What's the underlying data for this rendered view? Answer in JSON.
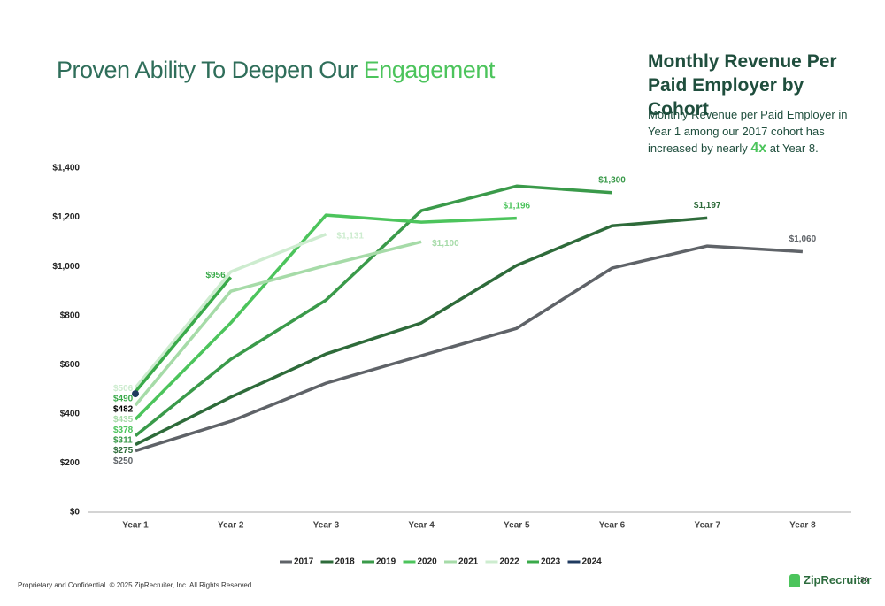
{
  "header": {
    "title": "Proven Ability To Deepen Our ",
    "title_highlight": "Engagement"
  },
  "side": {
    "title": "Monthly Revenue Per Paid Employer by Cohort",
    "description": "Monthly Revenue per Paid Employer in Year 1 among our 2017 cohort has increased by nearly ",
    "description_highlight": "4x",
    "description_end": " at Year 8."
  },
  "footer": {
    "text": "Proprietary and Confidential. © 2025 ZipRecruiter, Inc. All Rights Reserved.",
    "logo": "ZipRecruiter",
    "page": "26"
  },
  "chart_data": {
    "type": "line",
    "categories": [
      "Year 1",
      "Year 2",
      "Year 3",
      "Year 4",
      "Year 5",
      "Year 6",
      "Year 7",
      "Year 8"
    ],
    "ylim": [
      0,
      1400
    ],
    "yticks": [
      {
        "value": 0,
        "label": "$0"
      },
      {
        "value": 200,
        "label": "$200"
      },
      {
        "value": 400,
        "label": "$400"
      },
      {
        "value": 600,
        "label": "$600"
      },
      {
        "value": 800,
        "label": "$800"
      },
      {
        "value": 1000,
        "label": "$1,000"
      },
      {
        "value": 1200,
        "label": "$1,200"
      },
      {
        "value": 1400,
        "label": "$1,400"
      }
    ],
    "grid": false,
    "legend": "bottom",
    "series": [
      {
        "name": "2017",
        "color": "#5f6368",
        "values": [
          250,
          370,
          525,
          637,
          748,
          993,
          1083,
          1060
        ],
        "value_labels": [
          "$250",
          null,
          null,
          null,
          null,
          null,
          null,
          "$1,060"
        ]
      },
      {
        "name": "2018",
        "color": "#2e6b3a",
        "values": [
          275,
          468,
          644,
          770,
          1004,
          1165,
          1197,
          null
        ],
        "value_labels": [
          "$275",
          null,
          null,
          null,
          null,
          null,
          "$1,197",
          null
        ]
      },
      {
        "name": "2019",
        "color": "#3a9a4a",
        "values": [
          311,
          622,
          863,
          1227,
          1327,
          1300,
          null,
          null
        ],
        "value_labels": [
          "$311",
          null,
          null,
          null,
          null,
          "$1,300",
          null,
          null
        ]
      },
      {
        "name": "2020",
        "color": "#4cc45c",
        "values": [
          378,
          770,
          1209,
          1180,
          1196,
          null,
          null,
          null
        ],
        "value_labels": [
          "$378",
          null,
          null,
          null,
          "$1,196",
          null,
          null,
          null
        ]
      },
      {
        "name": "2021",
        "color": "#a6dba8",
        "values": [
          435,
          899,
          1004,
          1100,
          null,
          null,
          null,
          null
        ],
        "value_labels": [
          "$435",
          null,
          null,
          "$1,100",
          null,
          null,
          null,
          null
        ]
      },
      {
        "name": "2022",
        "color": "#cdeccf",
        "values": [
          506,
          978,
          1131,
          null,
          null,
          null,
          null,
          null
        ],
        "value_labels": [
          "$506",
          null,
          "$1,131",
          null,
          null,
          null,
          null,
          null
        ]
      },
      {
        "name": "2023",
        "color": "#3aaa4a",
        "values": [
          490,
          956,
          null,
          null,
          null,
          null,
          null,
          null
        ],
        "value_labels": [
          "$490",
          "$956",
          null,
          null,
          null,
          null,
          null,
          null
        ]
      },
      {
        "name": "2024",
        "color": "#1f3a5f",
        "values": [
          482,
          null,
          null,
          null,
          null,
          null,
          null,
          null
        ],
        "value_labels": [
          "$482",
          null,
          null,
          null,
          null,
          null,
          null,
          null
        ]
      }
    ]
  }
}
